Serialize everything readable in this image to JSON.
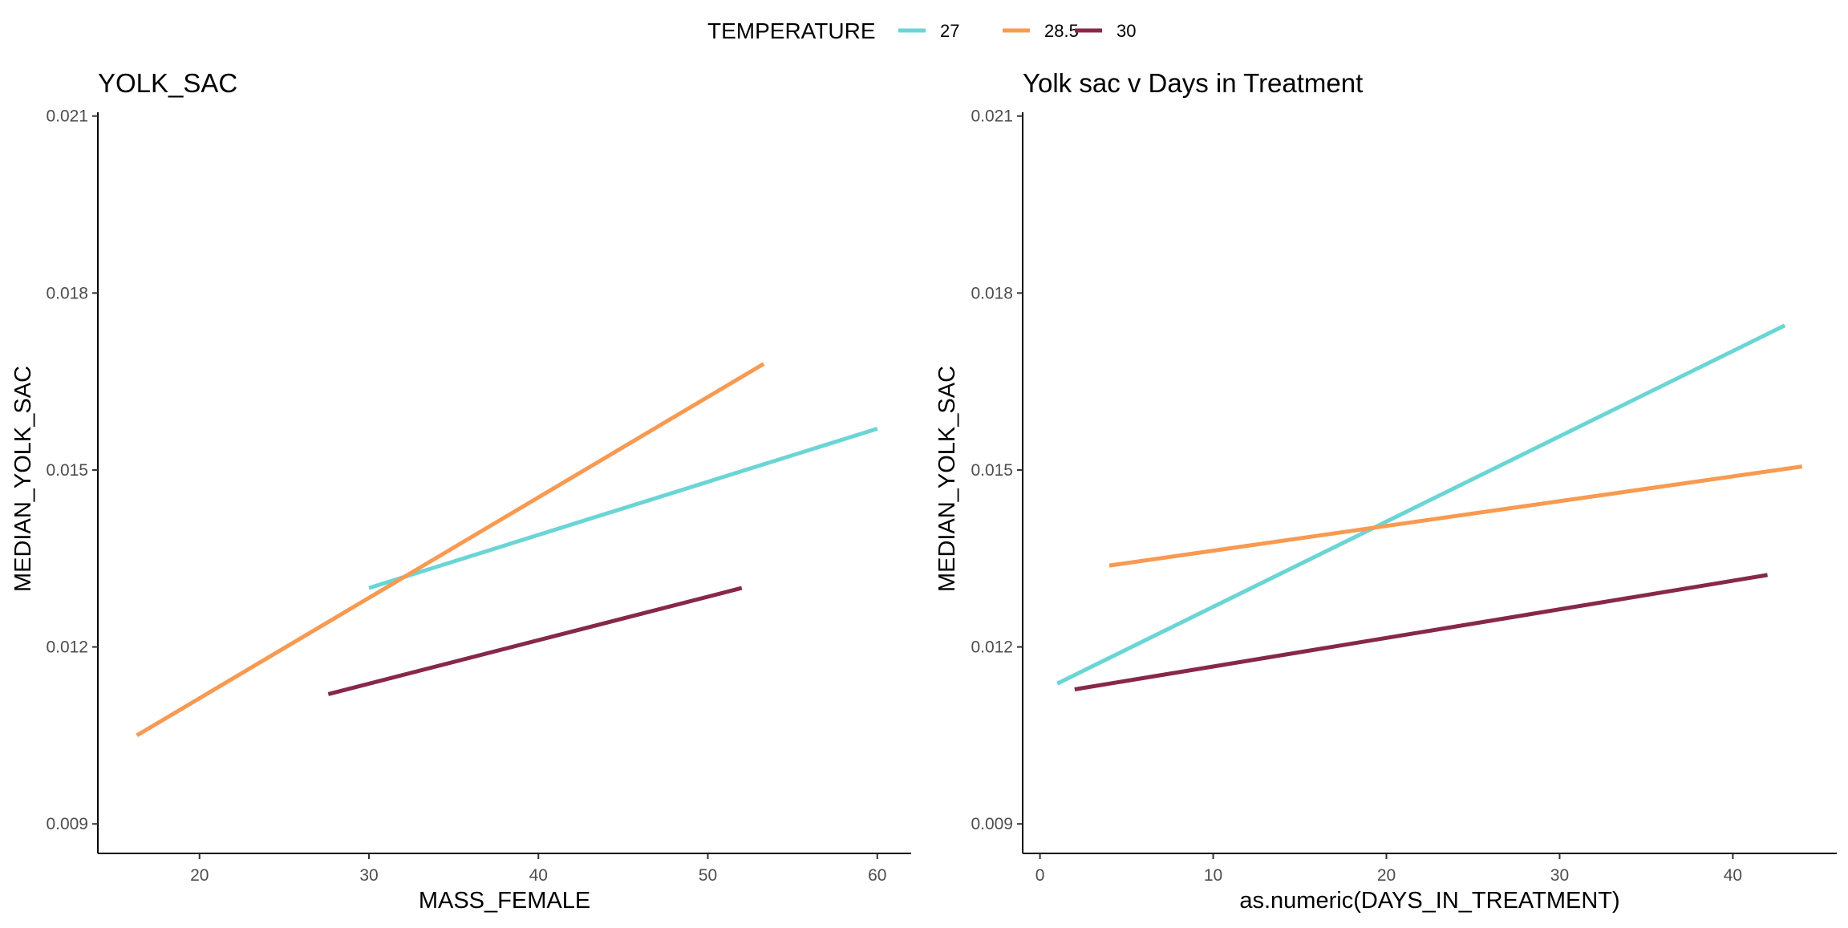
{
  "legend": {
    "title": "TEMPERATURE",
    "items": [
      {
        "label": "27",
        "color": "#6BD5D5"
      },
      {
        "label": "28.5",
        "color": "#F79A52"
      },
      {
        "label": "30",
        "color": "#87284A"
      }
    ]
  },
  "chart_data": [
    {
      "type": "line",
      "title": "YOLK_SAC",
      "xlabel": "MASS_FEMALE",
      "ylabel": "MEDIAN_YOLK_SAC",
      "xlim": [
        14,
        62
      ],
      "ylim": [
        0.0085,
        0.0212
      ],
      "xticks": [
        "20",
        "30",
        "40",
        "50",
        "60"
      ],
      "xtick_values": [
        20,
        30,
        40,
        50,
        60
      ],
      "yticks": [
        "0.009",
        "0.012",
        "0.015",
        "0.018",
        "0.021"
      ],
      "ytick_values": [
        0.009,
        0.012,
        0.015,
        0.018,
        0.021
      ],
      "grid": false,
      "series": [
        {
          "name": "27",
          "color": "#6BD5D5",
          "x": [
            30,
            60
          ],
          "y": [
            0.013,
            0.0157
          ]
        },
        {
          "name": "28.5",
          "color": "#F79A52",
          "x": [
            16.3,
            53.3
          ],
          "y": [
            0.0105,
            0.0168
          ]
        },
        {
          "name": "30",
          "color": "#87284A",
          "x": [
            27.6,
            52
          ],
          "y": [
            0.0112,
            0.013
          ]
        }
      ]
    },
    {
      "type": "line",
      "title": "Yolk sac v Days in Treatment",
      "xlabel": "as.numeric(DAYS_IN_TREATMENT)",
      "ylabel": "MEDIAN_YOLK_SAC",
      "xlim": [
        -1,
        46
      ],
      "ylim": [
        0.0085,
        0.0212
      ],
      "xticks": [
        "0",
        "10",
        "20",
        "30",
        "40"
      ],
      "xtick_values": [
        0,
        10,
        20,
        30,
        40
      ],
      "yticks": [
        "0.009",
        "0.012",
        "0.015",
        "0.018",
        "0.021"
      ],
      "ytick_values": [
        0.009,
        0.012,
        0.015,
        0.018,
        0.021
      ],
      "grid": false,
      "series": [
        {
          "name": "27",
          "color": "#6BD5D5",
          "x": [
            1,
            43
          ],
          "y": [
            0.01138,
            0.01745
          ]
        },
        {
          "name": "28.5",
          "color": "#F79A52",
          "x": [
            4,
            44
          ],
          "y": [
            0.01338,
            0.01506
          ]
        },
        {
          "name": "30",
          "color": "#87284A",
          "x": [
            2,
            42
          ],
          "y": [
            0.01128,
            0.01322
          ]
        }
      ]
    }
  ]
}
